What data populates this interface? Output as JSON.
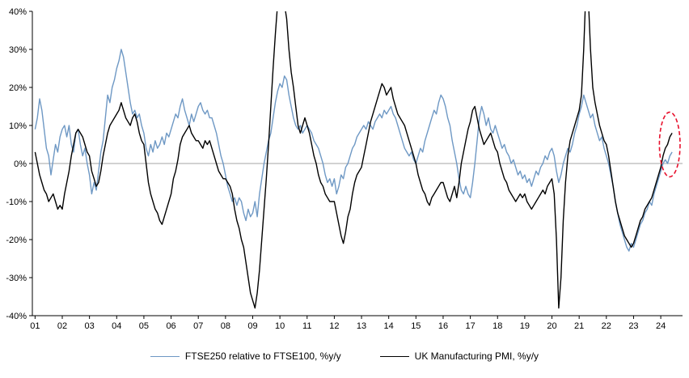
{
  "chart_data": {
    "type": "line",
    "title": "",
    "xlabel": "",
    "ylabel": "",
    "x_start_year": 2001,
    "x_step_months": 1,
    "xlim": [
      2000.9,
      2024.8
    ],
    "ylim": [
      -40,
      40
    ],
    "grid": false,
    "legend_position": "bottom-center",
    "ytick_values": [
      40,
      30,
      20,
      10,
      0,
      -10,
      -20,
      -30,
      -40
    ],
    "ytick_labels": [
      "40%",
      "30%",
      "20%",
      "10%",
      "0%",
      "-10%",
      "-20%",
      "-30%",
      "-40%"
    ],
    "xtick_values": [
      2001,
      2002,
      2003,
      2004,
      2005,
      2006,
      2007,
      2008,
      2009,
      2010,
      2011,
      2012,
      2013,
      2014,
      2015,
      2016,
      2017,
      2018,
      2019,
      2020,
      2021,
      2022,
      2023,
      2024
    ],
    "xtick_labels": [
      "01",
      "02",
      "03",
      "04",
      "05",
      "06",
      "07",
      "08",
      "09",
      "10",
      "11",
      "12",
      "13",
      "14",
      "15",
      "16",
      "17",
      "18",
      "19",
      "20",
      "21",
      "22",
      "23",
      "24"
    ],
    "zero_line_value": 0,
    "zero_line_color": "#a6a6a6",
    "axis_color": "#000000",
    "series": [
      {
        "name": "FTSE250 relative to FTSE100, %y/y",
        "color": "#6e98c4",
        "width": 1.4,
        "values": [
          9,
          12,
          17,
          14,
          9,
          4,
          2,
          -3,
          1,
          5,
          3,
          7,
          9,
          10,
          7,
          10,
          5,
          3,
          8,
          9,
          5,
          2,
          4,
          0,
          -3,
          -8,
          -5,
          -7,
          -2,
          3,
          6,
          12,
          18,
          16,
          20,
          22,
          25,
          27,
          30,
          28,
          24,
          20,
          16,
          13,
          14,
          12,
          13,
          10,
          8,
          4,
          2,
          5,
          3,
          6,
          4,
          5,
          7,
          5,
          8,
          7,
          9,
          11,
          13,
          12,
          15,
          17,
          14,
          12,
          10,
          13,
          11,
          13,
          15,
          16,
          14,
          13,
          14,
          12,
          12,
          10,
          8,
          5,
          2,
          0,
          -3,
          -6,
          -8,
          -10,
          -9,
          -11,
          -9,
          -10,
          -13,
          -15,
          -12,
          -14,
          -13,
          -10,
          -14,
          -8,
          -4,
          0,
          3,
          6,
          8,
          12,
          16,
          19,
          21,
          20,
          23,
          22,
          18,
          15,
          12,
          10,
          9,
          10,
          8,
          9,
          10,
          9,
          8,
          6,
          5,
          4,
          2,
          0,
          -3,
          -5,
          -4,
          -6,
          -4,
          -8,
          -6,
          -3,
          -4,
          -1,
          0,
          2,
          4,
          5,
          7,
          8,
          9,
          10,
          9,
          11,
          10,
          9,
          11,
          12,
          13,
          12,
          14,
          13,
          14,
          15,
          13,
          12,
          10,
          8,
          6,
          4,
          3,
          2,
          3,
          1,
          0,
          2,
          4,
          3,
          6,
          8,
          10,
          12,
          14,
          13,
          16,
          18,
          17,
          15,
          12,
          10,
          6,
          3,
          0,
          -4,
          -7,
          -8,
          -6,
          -8,
          -9,
          -5,
          0,
          6,
          12,
          15,
          13,
          10,
          12,
          9,
          8,
          10,
          8,
          6,
          4,
          5,
          3,
          2,
          0,
          1,
          -1,
          -3,
          -2,
          -4,
          -3,
          -5,
          -4,
          -6,
          -4,
          -2,
          -3,
          -1,
          0,
          2,
          1,
          3,
          4,
          2,
          -2,
          -5,
          -3,
          0,
          2,
          4,
          3,
          5,
          8,
          10,
          13,
          15,
          18,
          16,
          14,
          12,
          13,
          10,
          8,
          6,
          7,
          4,
          2,
          0,
          -3,
          -6,
          -10,
          -13,
          -16,
          -18,
          -20,
          -22,
          -23,
          -21,
          -22,
          -20,
          -18,
          -16,
          -15,
          -13,
          -12,
          -10,
          -11,
          -8,
          -6,
          -4,
          -2,
          0,
          1,
          0,
          2,
          3
        ]
      },
      {
        "name": "UK Manufacturing PMI, %y/y",
        "color": "#000000",
        "width": 1.4,
        "values": [
          3,
          0,
          -3,
          -5,
          -7,
          -8,
          -10,
          -9,
          -8,
          -10,
          -12,
          -11,
          -12,
          -8,
          -5,
          -2,
          2,
          5,
          8,
          9,
          8,
          7,
          5,
          3,
          2,
          -2,
          -4,
          -6,
          -5,
          -2,
          2,
          5,
          8,
          10,
          11,
          12,
          13,
          14,
          16,
          14,
          12,
          11,
          10,
          12,
          13,
          11,
          8,
          6,
          5,
          0,
          -5,
          -8,
          -10,
          -12,
          -13,
          -15,
          -16,
          -14,
          -12,
          -10,
          -8,
          -4,
          -2,
          1,
          5,
          7,
          8,
          9,
          10,
          8,
          7,
          6,
          6,
          5,
          4,
          6,
          5,
          6,
          4,
          2,
          0,
          -2,
          -3,
          -4,
          -4,
          -5,
          -6,
          -8,
          -12,
          -15,
          -17,
          -20,
          -22,
          -26,
          -30,
          -34,
          -36,
          -38,
          -34,
          -28,
          -20,
          -12,
          -4,
          5,
          15,
          25,
          34,
          42,
          45,
          44,
          42,
          38,
          30,
          24,
          20,
          15,
          10,
          8,
          10,
          12,
          10,
          8,
          5,
          2,
          0,
          -3,
          -5,
          -6,
          -8,
          -9,
          -10,
          -10,
          -10,
          -13,
          -16,
          -19,
          -21,
          -18,
          -14,
          -12,
          -8,
          -5,
          -3,
          -2,
          -1,
          2,
          5,
          8,
          11,
          13,
          15,
          17,
          19,
          21,
          20,
          18,
          19,
          20,
          17,
          15,
          13,
          12,
          11,
          10,
          8,
          6,
          4,
          2,
          0,
          -3,
          -5,
          -7,
          -8,
          -10,
          -11,
          -9,
          -8,
          -7,
          -6,
          -5,
          -5,
          -7,
          -9,
          -10,
          -8,
          -6,
          -9,
          -5,
          0,
          3,
          6,
          9,
          11,
          14,
          15,
          12,
          9,
          7,
          5,
          6,
          7,
          8,
          6,
          4,
          3,
          0,
          -2,
          -4,
          -5,
          -7,
          -8,
          -9,
          -10,
          -9,
          -8,
          -9,
          -8,
          -10,
          -11,
          -12,
          -11,
          -10,
          -9,
          -8,
          -7,
          -8,
          -6,
          -5,
          -4,
          -8,
          -20,
          -38,
          -30,
          -15,
          -5,
          2,
          6,
          8,
          10,
          12,
          14,
          18,
          30,
          46,
          44,
          30,
          20,
          16,
          13,
          10,
          8,
          6,
          5,
          2,
          -2,
          -6,
          -10,
          -13,
          -15,
          -17,
          -19,
          -20,
          -21,
          -22,
          -21,
          -19,
          -17,
          -15,
          -14,
          -12,
          -11,
          -10,
          -9,
          -7,
          -5,
          -3,
          -1,
          2,
          4,
          5,
          7,
          8
        ]
      }
    ],
    "annotation": {
      "type": "ellipse",
      "x": 2024.33,
      "y": 5,
      "rx_years": 0.38,
      "ry_units": 8.5,
      "color": "#e8112d",
      "dash": "5 3",
      "stroke_width": 1.6
    }
  }
}
